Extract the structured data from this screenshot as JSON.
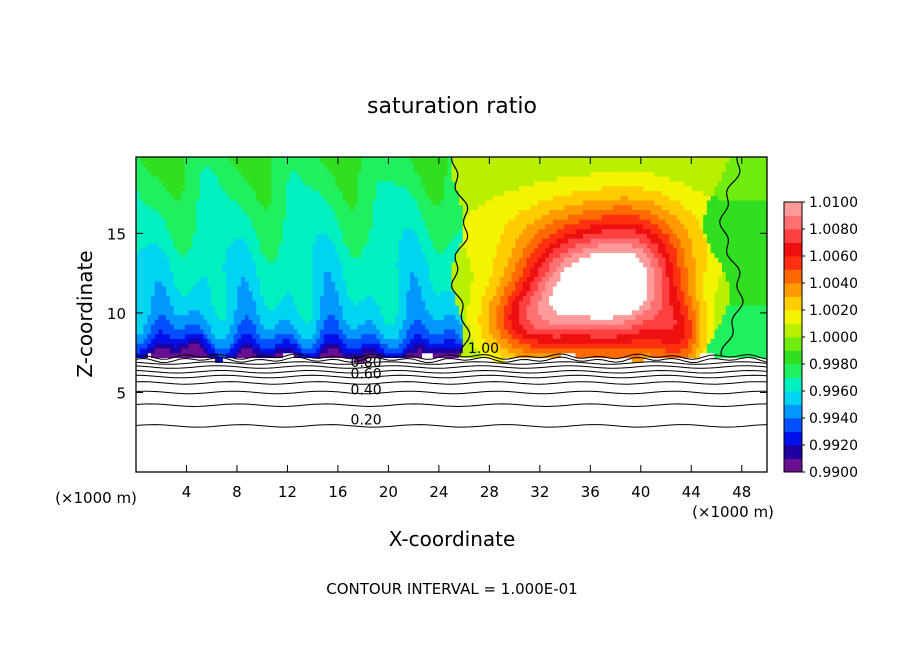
{
  "chart_data": {
    "type": "heatmap",
    "title": "saturation ratio",
    "xlabel": "X-coordinate",
    "ylabel": "Z-coordinate",
    "x_unit_left": "(×1000 m)",
    "x_unit_right": "(×1000 m)",
    "footer": "CONTOUR INTERVAL = 1.000E-01",
    "xlim": [
      0,
      50
    ],
    "ylim": [
      0,
      19.8
    ],
    "x_ticks": [
      {
        "value": 4,
        "label": "4"
      },
      {
        "value": 8,
        "label": "8"
      },
      {
        "value": 12,
        "label": "12"
      },
      {
        "value": 16,
        "label": "16"
      },
      {
        "value": 20,
        "label": "20"
      },
      {
        "value": 24,
        "label": "24"
      },
      {
        "value": 28,
        "label": "28"
      },
      {
        "value": 32,
        "label": "32"
      },
      {
        "value": 36,
        "label": "36"
      },
      {
        "value": 40,
        "label": "40"
      },
      {
        "value": 44,
        "label": "44"
      },
      {
        "value": 48,
        "label": "48"
      }
    ],
    "y_ticks": [
      {
        "value": 5,
        "label": "5"
      },
      {
        "value": 10,
        "label": "10"
      },
      {
        "value": 15,
        "label": "15"
      }
    ],
    "colorbar": {
      "range": [
        0.99,
        1.01
      ],
      "tick_labels": [
        "1.0100",
        "1.0080",
        "1.0060",
        "1.0040",
        "1.0020",
        "1.0000",
        "0.9980",
        "0.9960",
        "0.9940",
        "0.9920",
        "0.9900"
      ],
      "colors": [
        "#6a0f8f",
        "#2000a0",
        "#0010e8",
        "#0050ff",
        "#0098ff",
        "#00d4f0",
        "#00f0c0",
        "#20f060",
        "#30e020",
        "#70ec10",
        "#b8f000",
        "#f4f400",
        "#ffcc00",
        "#ff9a00",
        "#ff6a00",
        "#ff3010",
        "#ee1010",
        "#ff4040",
        "#ff7070",
        "#ff9a9a"
      ]
    },
    "contour_labels": [
      {
        "value": 1.0,
        "label": "1.00",
        "x": 26.3,
        "y": 7.8
      },
      {
        "value": 0.8,
        "label": "0.80",
        "x": 17.0,
        "y": 6.9
      },
      {
        "value": 0.6,
        "label": "0.60",
        "x": 17.0,
        "y": 6.2
      },
      {
        "value": 0.4,
        "label": "0.40",
        "x": 17.0,
        "y": 5.2
      },
      {
        "value": 0.2,
        "label": "0.20",
        "x": 17.0,
        "y": 3.3
      }
    ],
    "contour_lines": [
      0.1,
      0.2,
      0.3,
      0.4,
      0.5,
      0.6,
      0.7,
      0.8,
      0.9,
      1.0
    ]
  }
}
